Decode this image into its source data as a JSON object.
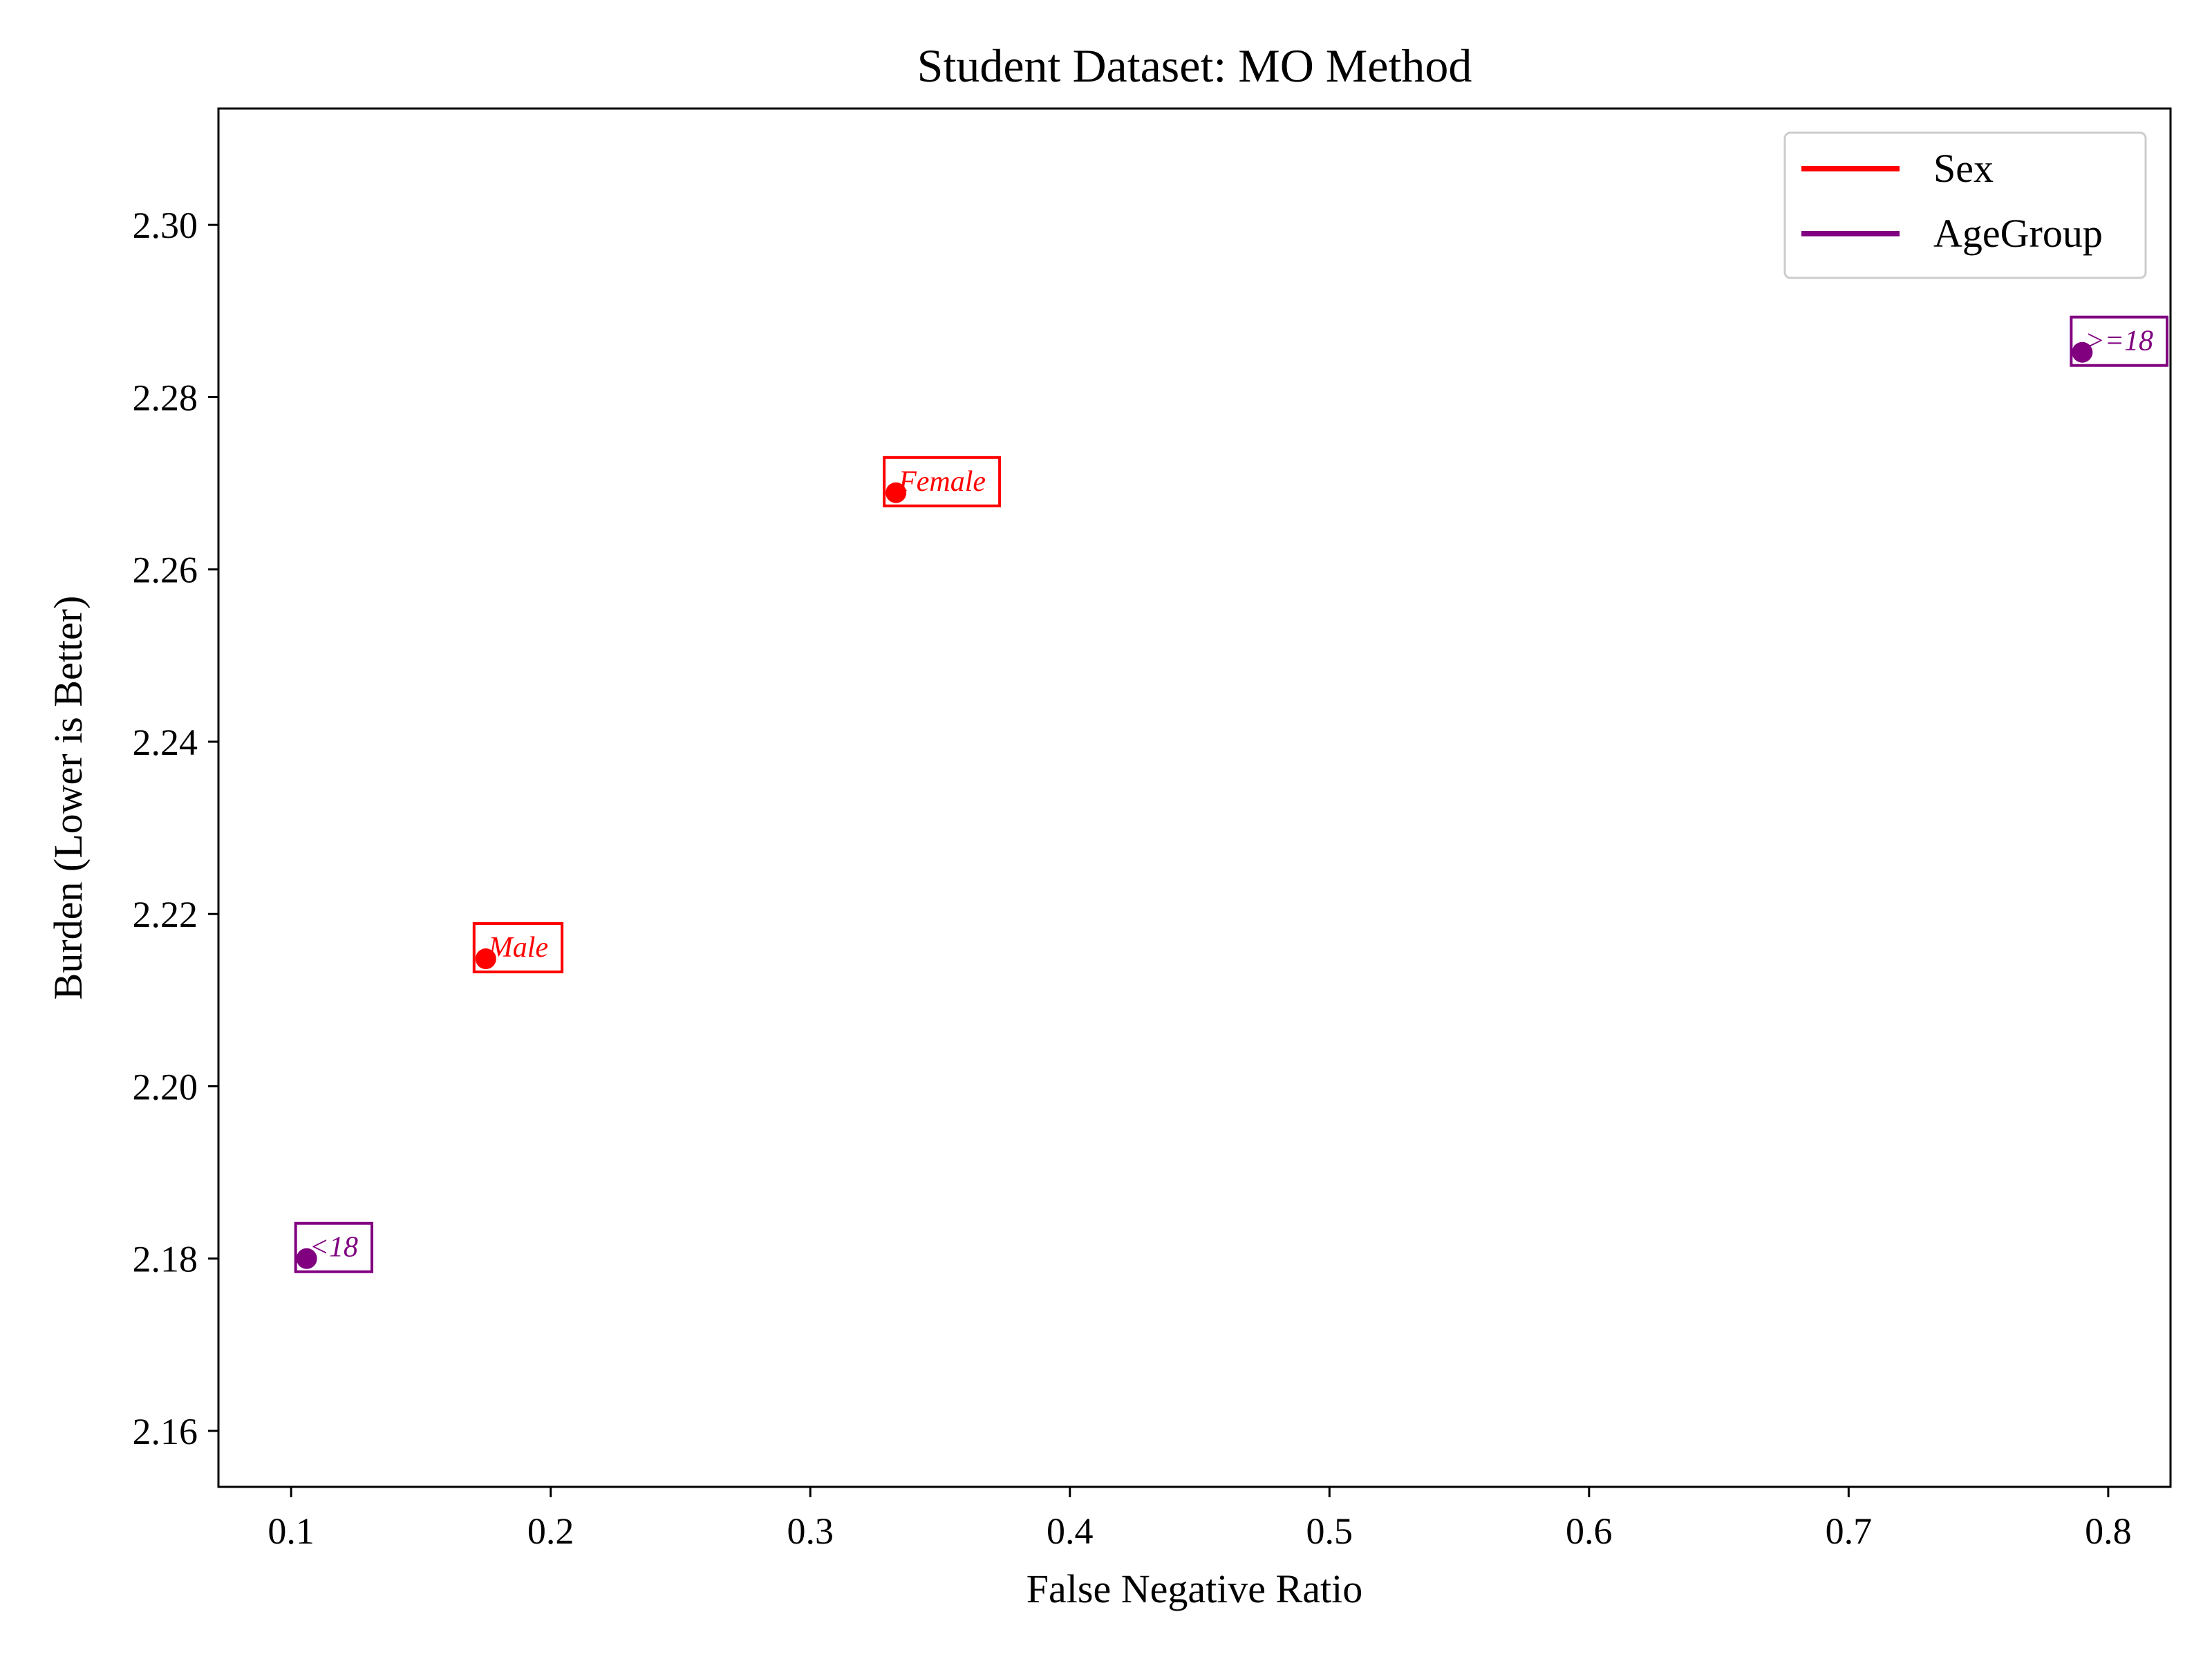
{
  "chart_data": {
    "type": "scatter",
    "title": "Student Dataset: MO Method",
    "xlabel": "False Negative Ratio",
    "ylabel": "Burden (Lower is Better)",
    "xlim": [
      0.072,
      0.824
    ],
    "ylim": [
      2.1535,
      2.3135
    ],
    "xticks": [
      0.1,
      0.2,
      0.3,
      0.4,
      0.5,
      0.6,
      0.7,
      0.8
    ],
    "yticks": [
      2.16,
      2.18,
      2.2,
      2.22,
      2.24,
      2.26,
      2.28,
      2.3
    ],
    "xtick_labels": [
      "0.1",
      "0.2",
      "0.3",
      "0.4",
      "0.5",
      "0.6",
      "0.7",
      "0.8"
    ],
    "ytick_labels": [
      "2.16",
      "2.18",
      "2.20",
      "2.22",
      "2.24",
      "2.26",
      "2.28",
      "2.30"
    ],
    "grid": false,
    "legend_position": "top-right",
    "series": [
      {
        "name": "Sex",
        "color": "#ff0000",
        "points": [
          {
            "label": "Male",
            "x": 0.175,
            "y": 2.2148
          },
          {
            "label": "Female",
            "x": 0.333,
            "y": 2.2689
          }
        ]
      },
      {
        "name": "AgeGroup",
        "color": "#800080",
        "points": [
          {
            "label": "<18",
            "x": 0.106,
            "y": 2.18
          },
          {
            "label": ">=18",
            "x": 0.79,
            "y": 2.2852
          }
        ]
      }
    ]
  }
}
